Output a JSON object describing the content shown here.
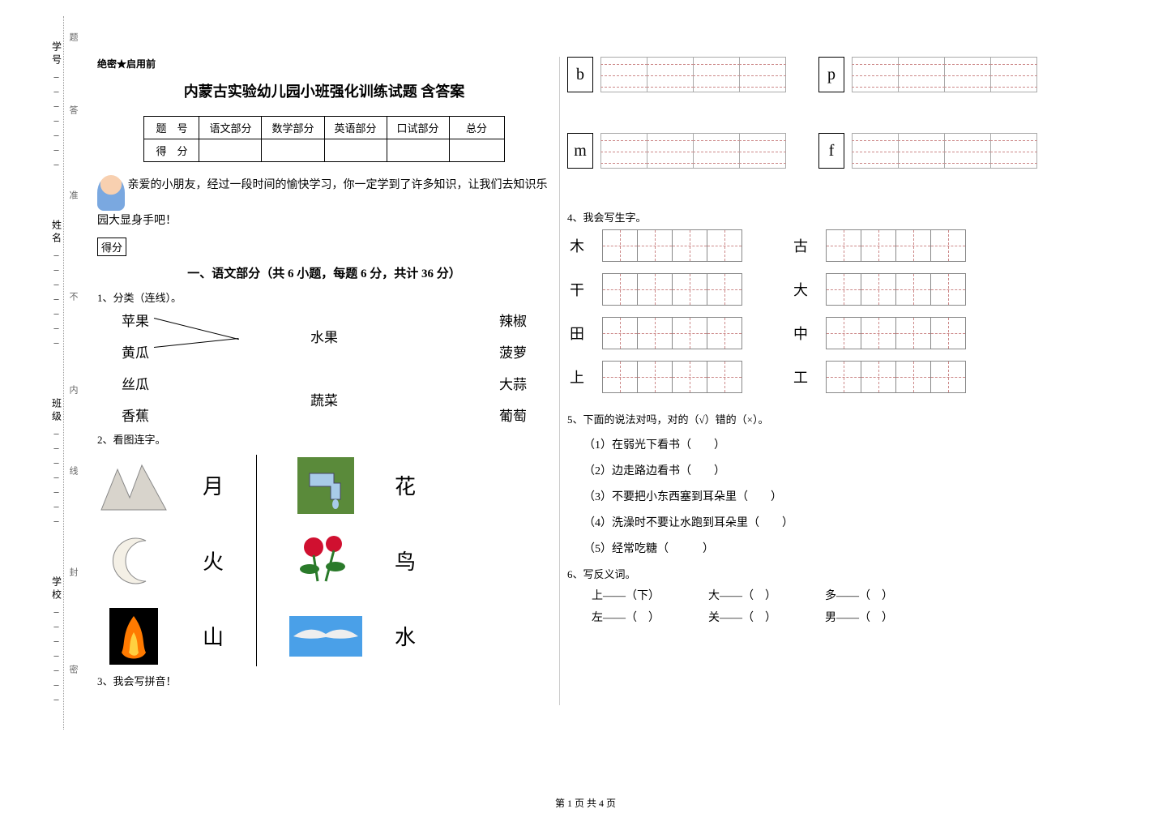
{
  "binding": {
    "labels": [
      "学号",
      "姓名",
      "班级",
      "学校"
    ],
    "dotted_markers": [
      "题",
      "答",
      "准",
      "不",
      "内",
      "线",
      "封",
      "密"
    ]
  },
  "header_note": "绝密★启用前",
  "title": "内蒙古实验幼儿园小班强化训练试题 含答案",
  "score_table": {
    "row1": [
      "题　号",
      "语文部分",
      "数学部分",
      "英语部分",
      "口试部分",
      "总分"
    ],
    "row2": [
      "得　分",
      "",
      "",
      "",
      "",
      ""
    ]
  },
  "intro": "亲爱的小朋友，经过一段时间的愉快学习，你一定学到了许多知识，让我们去知识乐园大显身手吧！",
  "score_box": "得分",
  "section1_title": "一、语文部分（共 6 小题，每题 6 分，共计 36 分）",
  "q1": {
    "label": "1、分类（连线）。",
    "left": [
      "苹果",
      "黄瓜",
      "丝瓜",
      "香蕉"
    ],
    "mid": [
      "水果",
      "蔬菜"
    ],
    "right": [
      "辣椒",
      "菠萝",
      "大蒜",
      "葡萄"
    ],
    "font_family": "KaiTi"
  },
  "q2": {
    "label": "2、看图连字。",
    "col1_chars": [
      "月",
      "火",
      "山"
    ],
    "col2_chars": [
      "花",
      "鸟",
      "水"
    ],
    "images": {
      "mountain": {
        "fill": "#d8d4cc"
      },
      "moon": {
        "fill": "#f4f0e6",
        "stroke": "#888"
      },
      "fire": {
        "bg": "#000",
        "flame": "#ff7a00"
      },
      "tap": {
        "bg": "#5a8a3a",
        "fg": "#a8cbe8"
      },
      "rose": {
        "flower": "#d01030",
        "leaf": "#2a7a2a"
      },
      "bird": {
        "bg": "#4aa0e8",
        "fg": "#eee"
      }
    }
  },
  "q3": {
    "label": "3、我会写拼音！",
    "letters": [
      "b",
      "p",
      "m",
      "f"
    ]
  },
  "q4": {
    "label": "4、我会写生字。",
    "left_chars": [
      "木",
      "干",
      "田",
      "上"
    ],
    "right_chars": [
      "古",
      "大",
      "中",
      "工"
    ],
    "cells_per_group": 4
  },
  "q5": {
    "label": "5、下面的说法对吗，对的（√）错的（×）。",
    "items": [
      "（1）在弱光下看书（　　）",
      "（2）边走路边看书（　　）",
      "（3）不要把小东西塞到耳朵里（　　）",
      "（4）洗澡时不要让水跑到耳朵里（　　）",
      "（5）经常吃糖（　　　）"
    ]
  },
  "q6": {
    "label": "6、写反义词。",
    "rows": [
      [
        "上——（下）",
        "大——（　）",
        "多——（　）"
      ],
      [
        "左——（　）",
        "关——（　）",
        "男——（　）"
      ]
    ]
  },
  "footer": "第 1 页 共 4 页",
  "colors": {
    "text": "#000000",
    "grid_dash": "#cc8888",
    "grid_border": "#888888",
    "bg": "#ffffff"
  }
}
